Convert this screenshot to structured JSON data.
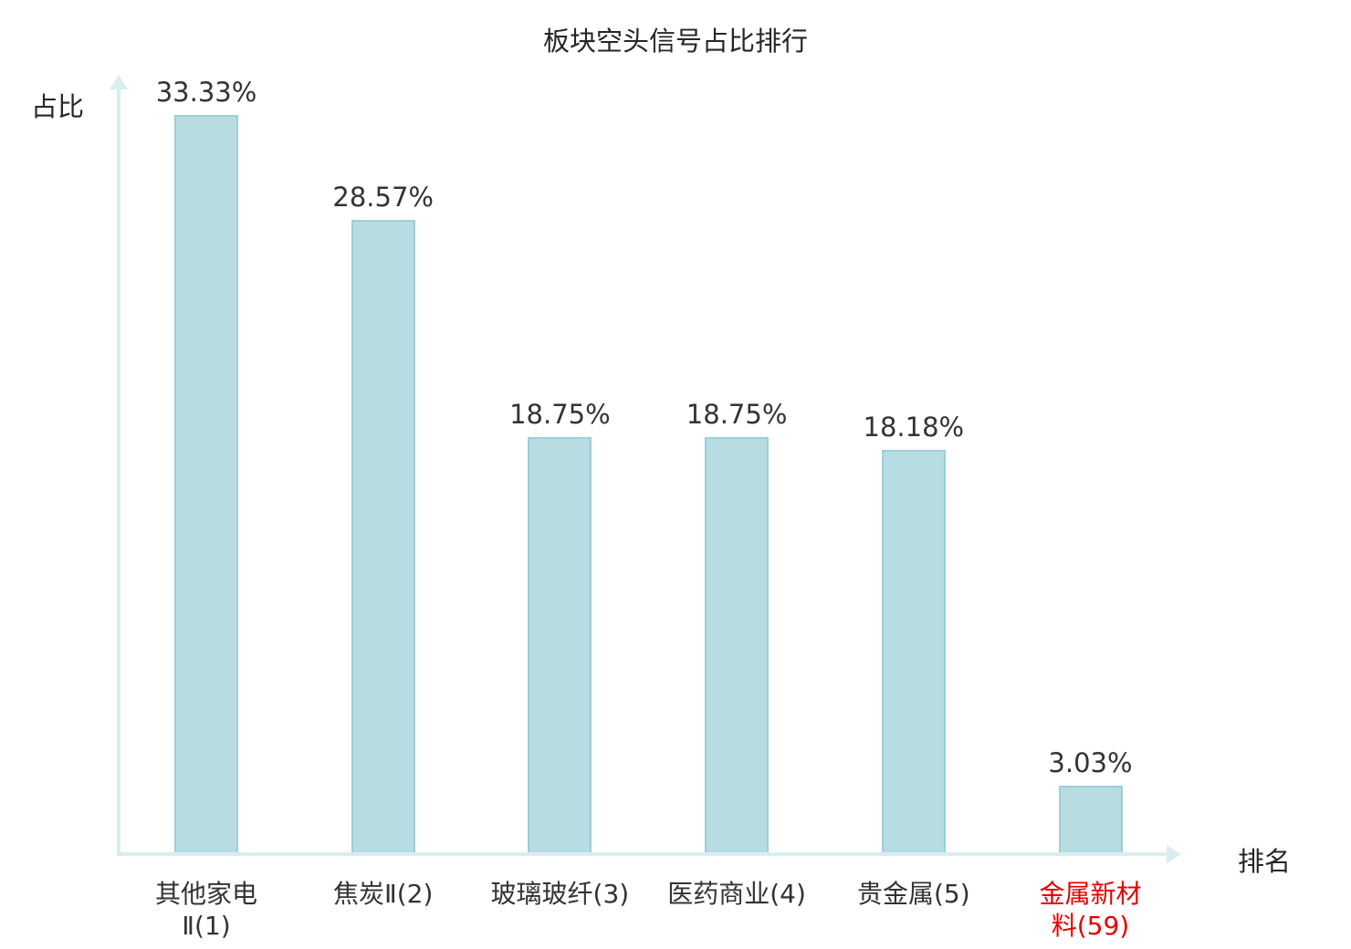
{
  "chart_data": {
    "type": "bar",
    "title": "板块空头信号占比排行",
    "xlabel": "排名",
    "ylabel": "占比",
    "categories": [
      "其他家电Ⅱ(1)",
      "焦炭Ⅱ(2)",
      "玻璃玻纤(3)",
      "医药商业(4)",
      "贵金属(5)",
      "金属新材料(59)"
    ],
    "category_lines": [
      [
        "其他家电",
        "Ⅱ(1)"
      ],
      [
        "焦炭Ⅱ(2)"
      ],
      [
        "玻璃玻纤(3)"
      ],
      [
        "医药商业(4)"
      ],
      [
        "贵金属(5)"
      ],
      [
        "金属新材",
        "料(59)"
      ]
    ],
    "values": [
      33.33,
      28.57,
      18.75,
      18.75,
      18.18,
      3.03
    ],
    "value_labels": [
      "33.33%",
      "28.57%",
      "18.75%",
      "18.75%",
      "18.18%",
      "3.03%"
    ],
    "highlight_index": 5,
    "ylim": [
      0,
      35
    ],
    "grid": false,
    "legend": "none",
    "colors": {
      "bar_fill": "#b7dce1",
      "bar_border": "#9ccfd6",
      "axis": "#d8eef0",
      "label": "#333333",
      "title": "#262626",
      "highlight_label": "#e60000"
    }
  }
}
